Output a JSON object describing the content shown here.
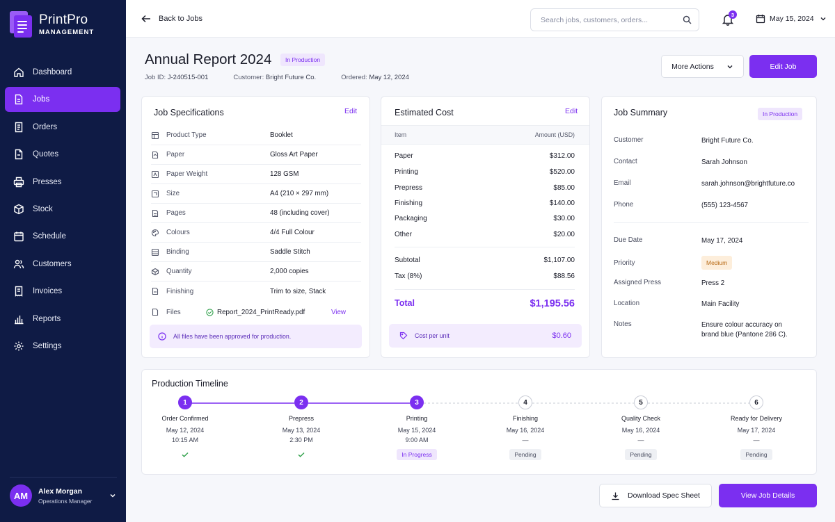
{
  "app": {
    "name": "PrintPro",
    "subtitle": "MANAGEMENT"
  },
  "sidebar": {
    "items": [
      {
        "label": "Dashboard",
        "icon": "home-icon"
      },
      {
        "label": "Jobs",
        "icon": "document-icon",
        "active": true
      },
      {
        "label": "Orders",
        "icon": "orders-icon"
      },
      {
        "label": "Quotes",
        "icon": "quote-icon"
      },
      {
        "label": "Presses",
        "icon": "printer-icon"
      },
      {
        "label": "Stock",
        "icon": "box-icon"
      },
      {
        "label": "Schedule",
        "icon": "calendar-icon"
      },
      {
        "label": "Customers",
        "icon": "users-icon"
      },
      {
        "label": "Invoices",
        "icon": "invoice-icon"
      },
      {
        "label": "Reports",
        "icon": "bar-chart-icon"
      },
      {
        "label": "Settings",
        "icon": "gear-icon"
      }
    ],
    "user": {
      "initials": "AM",
      "name": "Alex Morgan",
      "role": "Operations Manager"
    }
  },
  "topbar": {
    "back_label": "Back to Jobs",
    "search_placeholder": "Search jobs, customers, orders...",
    "notifications": "3",
    "date": "May 15, 2024"
  },
  "job": {
    "title": "Annual Report 2024",
    "status": "In Production",
    "id_label": "Job ID:",
    "id": "J-240515-001",
    "customer_label": "Customer:",
    "customer": "Bright Future Co.",
    "ordered_label": "Ordered:",
    "ordered": "May 12, 2024",
    "more_actions": "More Actions",
    "edit_job": "Edit Job"
  },
  "specs": {
    "title": "Job Specifications",
    "edit": "Edit",
    "rows": [
      {
        "label": "Product Type",
        "value": "Booklet",
        "icon": "book-icon"
      },
      {
        "label": "Paper",
        "value": "Gloss Art Paper",
        "icon": "paper-icon"
      },
      {
        "label": "Paper Weight",
        "value": "128 GSM",
        "icon": "weight-icon"
      },
      {
        "label": "Size",
        "value": "A4 (210 × 297 mm)",
        "icon": "size-icon"
      },
      {
        "label": "Pages",
        "value": "48 (including cover)",
        "icon": "pages-icon"
      },
      {
        "label": "Colours",
        "value": "4/4 Full Colour",
        "icon": "palette-icon"
      },
      {
        "label": "Binding",
        "value": "Saddle Stitch",
        "icon": "binding-icon"
      },
      {
        "label": "Quantity",
        "value": "2,000 copies",
        "icon": "quantity-icon"
      },
      {
        "label": "Finishing",
        "value": "Trim to size, Stack",
        "icon": "finishing-icon"
      }
    ],
    "files_label": "Files",
    "file_name": "Report_2024_PrintReady.pdf",
    "view": "View",
    "notice": "All files have been approved for production."
  },
  "cost": {
    "title": "Estimated Cost",
    "edit": "Edit",
    "col_item": "Item",
    "col_amount": "Amount (USD)",
    "rows": [
      {
        "item": "Paper",
        "amount": "$312.00"
      },
      {
        "item": "Printing",
        "amount": "$520.00"
      },
      {
        "item": "Prepress",
        "amount": "$85.00"
      },
      {
        "item": "Finishing",
        "amount": "$140.00"
      },
      {
        "item": "Packaging",
        "amount": "$30.00"
      },
      {
        "item": "Other",
        "amount": "$20.00"
      }
    ],
    "subtotal_label": "Subtotal",
    "subtotal": "$1,107.00",
    "tax_label": "Tax (8%)",
    "tax": "$88.56",
    "total_label": "Total",
    "total": "$1,195.56",
    "cpu_label": "Cost per unit",
    "cpu": "$0.60"
  },
  "summary": {
    "title": "Job Summary",
    "status": "In Production",
    "customer_label": "Customer",
    "customer": "Bright Future Co.",
    "contact_label": "Contact",
    "contact": "Sarah Johnson",
    "email_label": "Email",
    "email": "sarah.johnson@brightfuture.co",
    "phone_label": "Phone",
    "phone": "(555) 123-4567",
    "due_label": "Due Date",
    "due": "May 17, 2024",
    "priority_label": "Priority",
    "priority": "Medium",
    "press_label": "Assigned Press",
    "press": "Press 2",
    "location_label": "Location",
    "location": "Main Facility",
    "notes_label": "Notes",
    "notes": "Ensure colour accuracy on brand blue (Pantone 286 C)."
  },
  "timeline": {
    "title": "Production Timeline",
    "steps": [
      {
        "num": "1",
        "name": "Order Confirmed",
        "date": "May 12, 2024",
        "time": "10:15 AM",
        "status": "done"
      },
      {
        "num": "2",
        "name": "Prepress",
        "date": "May 13, 2024",
        "time": "2:30 PM",
        "status": "done"
      },
      {
        "num": "3",
        "name": "Printing",
        "date": "May 15, 2024",
        "time": "9:00 AM",
        "status": "In Progress"
      },
      {
        "num": "4",
        "name": "Finishing",
        "date": "May 16, 2024",
        "time": "—",
        "status": "Pending"
      },
      {
        "num": "5",
        "name": "Quality Check",
        "date": "May 16, 2024",
        "time": "—",
        "status": "Pending"
      },
      {
        "num": "6",
        "name": "Ready for Delivery",
        "date": "May 17, 2024",
        "time": "—",
        "status": "Pending"
      }
    ]
  },
  "footer": {
    "download": "Download Spec Sheet",
    "view_details": "View Job Details"
  },
  "colors": {
    "accent": "#7b2ff0",
    "sidebar": "#0f1b45"
  }
}
